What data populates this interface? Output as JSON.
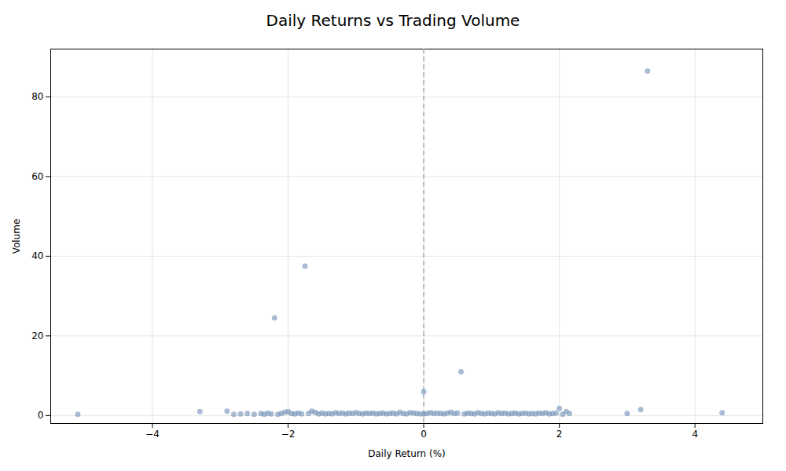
{
  "chart_data": {
    "type": "scatter",
    "title": "Daily Returns vs Trading Volume",
    "xlabel": "Daily Return (%)",
    "ylabel": "Volume",
    "x": [
      -5.1,
      -3.3,
      -2.9,
      -2.8,
      -2.7,
      -2.6,
      -2.5,
      -2.4,
      -2.35,
      -2.3,
      -2.25,
      -2.2,
      -2.15,
      -2.1,
      -2.05,
      -2.0,
      -1.95,
      -1.9,
      -1.85,
      -1.8,
      -1.75,
      -1.7,
      -1.65,
      -1.6,
      -1.55,
      -1.5,
      -1.45,
      -1.4,
      -1.35,
      -1.3,
      -1.25,
      -1.2,
      -1.15,
      -1.1,
      -1.05,
      -1.0,
      -0.95,
      -0.9,
      -0.85,
      -0.8,
      -0.75,
      -0.7,
      -0.65,
      -0.6,
      -0.55,
      -0.5,
      -0.45,
      -0.4,
      -0.35,
      -0.3,
      -0.25,
      -0.2,
      -0.15,
      -0.1,
      -0.05,
      0.0,
      0.0,
      0.05,
      0.1,
      0.15,
      0.2,
      0.25,
      0.3,
      0.35,
      0.4,
      0.45,
      0.5,
      0.55,
      0.6,
      0.65,
      0.7,
      0.75,
      0.8,
      0.85,
      0.9,
      0.95,
      1.0,
      1.05,
      1.1,
      1.15,
      1.2,
      1.25,
      1.3,
      1.35,
      1.4,
      1.45,
      1.5,
      1.55,
      1.6,
      1.65,
      1.7,
      1.75,
      1.8,
      1.85,
      1.9,
      1.95,
      2.0,
      2.05,
      2.1,
      2.15,
      3.0,
      3.2,
      3.3,
      4.4
    ],
    "values": [
      0.3,
      1.0,
      1.1,
      0.3,
      0.4,
      0.5,
      0.3,
      0.5,
      0.3,
      0.6,
      0.4,
      24.5,
      0.3,
      0.5,
      0.8,
      1.0,
      0.5,
      0.4,
      0.6,
      0.4,
      37.5,
      0.5,
      1.1,
      0.8,
      0.4,
      0.6,
      0.4,
      0.5,
      0.4,
      0.7,
      0.5,
      0.6,
      0.4,
      0.6,
      0.5,
      0.7,
      0.5,
      0.4,
      0.6,
      0.5,
      0.6,
      0.4,
      0.5,
      0.6,
      0.4,
      0.5,
      0.6,
      0.4,
      0.8,
      0.5,
      0.4,
      0.7,
      0.6,
      0.5,
      0.4,
      6.0,
      0.4,
      0.5,
      0.7,
      0.5,
      0.6,
      0.5,
      0.4,
      0.6,
      0.8,
      0.5,
      0.6,
      11.0,
      0.4,
      0.6,
      0.5,
      0.4,
      0.7,
      0.5,
      0.4,
      0.6,
      0.5,
      0.4,
      0.7,
      0.5,
      0.6,
      0.4,
      0.5,
      0.6,
      0.4,
      0.5,
      0.6,
      0.4,
      0.5,
      0.4,
      0.6,
      0.5,
      0.7,
      0.4,
      0.5,
      0.6,
      1.8,
      0.3,
      1.0,
      0.5,
      0.5,
      1.5,
      86.5,
      0.7
    ],
    "color": "#7090b8",
    "xlim": [
      -5.5,
      5.0
    ],
    "xticks": [
      -4,
      -2,
      0,
      2,
      4
    ],
    "ylim": [
      -2,
      92
    ],
    "yticks": [
      0,
      20,
      40,
      60,
      80
    ],
    "grid": true,
    "vline": {
      "x": 0,
      "color": "#aaaaaa",
      "line_style": "dashed"
    }
  }
}
